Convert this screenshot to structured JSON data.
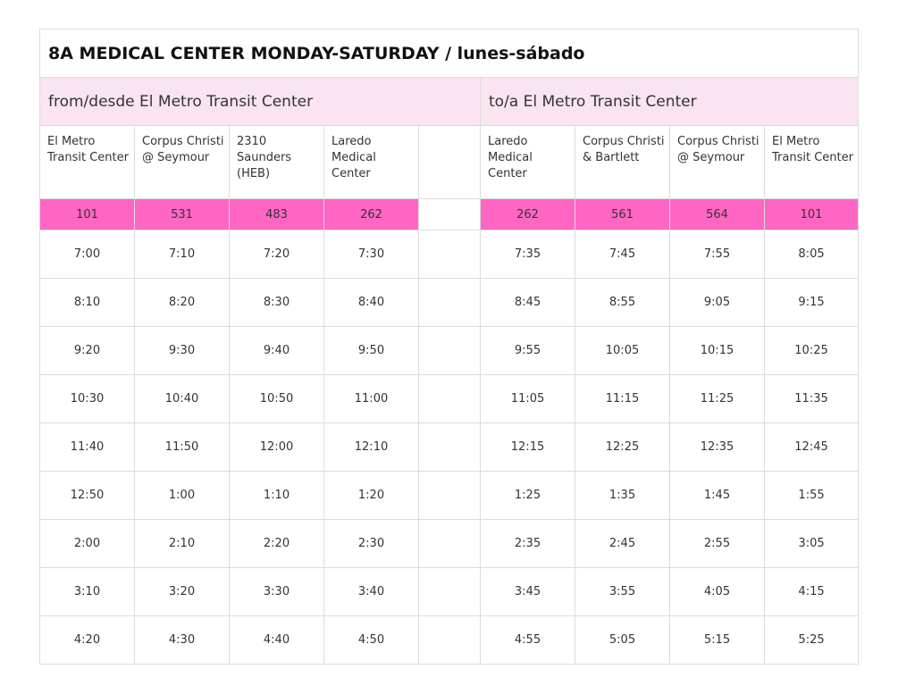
{
  "title": "8A MEDICAL CENTER MONDAY-SATURDAY / lunes-sábado",
  "outbound": {
    "label": "from/desde El Metro Transit Center",
    "stops": [
      "El Metro Transit Center",
      "Corpus Christi @ Seymour",
      "2310 Saunders (HEB)",
      "Laredo Medical Center"
    ],
    "stop_ids": [
      "101",
      "531",
      "483",
      "262"
    ],
    "times": [
      [
        "7:00",
        "7:10",
        "7:20",
        "7:30"
      ],
      [
        "8:10",
        "8:20",
        "8:30",
        "8:40"
      ],
      [
        "9:20",
        "9:30",
        "9:40",
        "9:50"
      ],
      [
        "10:30",
        "10:40",
        "10:50",
        "11:00"
      ],
      [
        "11:40",
        "11:50",
        "12:00",
        "12:10"
      ],
      [
        "12:50",
        "1:00",
        "1:10",
        "1:20"
      ],
      [
        "2:00",
        "2:10",
        "2:20",
        "2:30"
      ],
      [
        "3:10",
        "3:20",
        "3:30",
        "3:40"
      ],
      [
        "4:20",
        "4:30",
        "4:40",
        "4:50"
      ]
    ]
  },
  "inbound": {
    "label": "to/a El Metro Transit Center",
    "stops": [
      "Laredo Medical Center",
      "Corpus Christi & Bartlett",
      "Corpus Christi @ Seymour",
      "El Metro Transit Center"
    ],
    "stop_ids": [
      "262",
      "561",
      "564",
      "101"
    ],
    "times": [
      [
        "7:35",
        "7:45",
        "7:55",
        "8:05"
      ],
      [
        "8:45",
        "8:55",
        "9:05",
        "9:15"
      ],
      [
        "9:55",
        "10:05",
        "10:15",
        "10:25"
      ],
      [
        "11:05",
        "11:15",
        "11:25",
        "11:35"
      ],
      [
        "12:15",
        "12:25",
        "12:35",
        "12:45"
      ],
      [
        "1:25",
        "1:35",
        "1:45",
        "1:55"
      ],
      [
        "2:35",
        "2:45",
        "2:55",
        "3:05"
      ],
      [
        "3:45",
        "3:55",
        "4:05",
        "4:15"
      ],
      [
        "4:55",
        "5:05",
        "5:15",
        "5:25"
      ]
    ]
  },
  "colors": {
    "direction_header": "#fae4f1",
    "stop_id_row": "#ff66c4",
    "border": "#dcdcdc"
  }
}
